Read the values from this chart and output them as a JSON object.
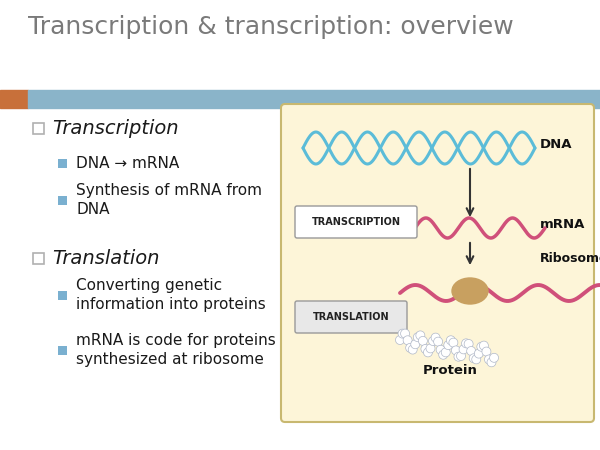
{
  "title": "Transcription & transcription: overview",
  "title_color": "#7a7a7a",
  "title_fontsize": 18,
  "bg_color": "#ffffff",
  "header_bar_color": "#8ab4c9",
  "header_orange_color": "#c8703a",
  "bullet1_title": "Transcription",
  "bullet1_sub1": "DNA → mRNA",
  "bullet1_sub2": "Synthesis of mRNA from\nDNA",
  "bullet2_title": "Translation",
  "bullet2_sub1": "Converting genetic\ninformation into proteins",
  "bullet2_sub2": "mRNA is code for proteins\nsynthesized at ribosome",
  "bullet_color": "#1a1a1a",
  "bullet_title_fontsize": 14,
  "bullet_sub_fontsize": 11,
  "bullet_square_edge_color": "#b0b0b0",
  "sub_square_color": "#7ab0d0",
  "diagram_bg_color": "#fdf5d8",
  "diagram_border_color": "#c8b870",
  "dna_color": "#5bbcd8",
  "mrna_color": "#d0507a",
  "ribosome_color": "#c8a060",
  "protein_color": "#b8c8e0",
  "arrow_color": "#333333",
  "label_color": "#111111",
  "transcription_box_bg": "#e8e8e8",
  "translation_box_bg": "#d8d8d8"
}
